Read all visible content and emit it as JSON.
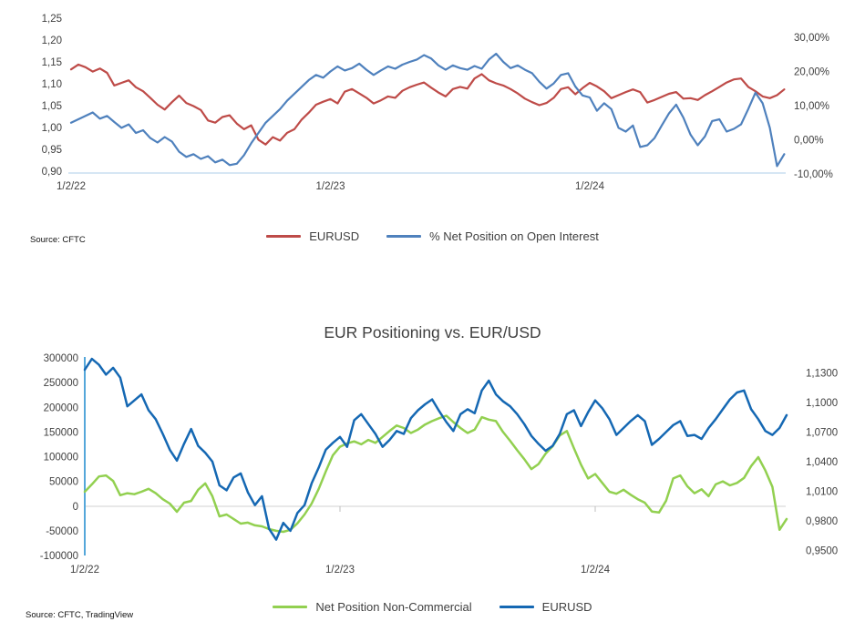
{
  "chart_data": [
    {
      "type": "line",
      "title": "",
      "source": "Source: CFTC",
      "x_tick_labels": [
        "1/2/22",
        "1/2/23",
        "1/2/24"
      ],
      "x_tick_years": [
        0,
        1,
        2
      ],
      "x_span_years": 2.75,
      "axes": {
        "left": {
          "min": 0.9,
          "max": 1.25,
          "labels": [
            "1,25",
            "1,20",
            "1,15",
            "1,10",
            "1,05",
            "1,00",
            "0,95",
            "0,90"
          ],
          "label_values": [
            1.25,
            1.2,
            1.15,
            1.1,
            1.05,
            1.0,
            0.95,
            0.9
          ]
        },
        "right": {
          "min": -10,
          "max": 30,
          "labels": [
            "30,00%",
            "20,00%",
            "10,00%",
            "0,00%",
            "-10,00%"
          ],
          "label_values": [
            30,
            20,
            10,
            0,
            -10
          ]
        }
      },
      "legend_position": "bottom",
      "series": [
        {
          "name": "EURUSD",
          "color": "#BE4B48",
          "axis": "left",
          "values": [
            1.133,
            1.144,
            1.138,
            1.128,
            1.135,
            1.125,
            1.096,
            1.102,
            1.108,
            1.092,
            1.083,
            1.068,
            1.052,
            1.041,
            1.058,
            1.073,
            1.056,
            1.049,
            1.04,
            1.016,
            1.011,
            1.024,
            1.028,
            1.009,
            0.996,
            1.005,
            0.972,
            0.961,
            0.978,
            0.97,
            0.988,
            0.996,
            1.018,
            1.034,
            1.052,
            1.059,
            1.065,
            1.055,
            1.082,
            1.088,
            1.078,
            1.068,
            1.055,
            1.062,
            1.071,
            1.068,
            1.084,
            1.092,
            1.098,
            1.103,
            1.091,
            1.08,
            1.071,
            1.088,
            1.093,
            1.089,
            1.112,
            1.122,
            1.108,
            1.101,
            1.096,
            1.088,
            1.078,
            1.066,
            1.058,
            1.051,
            1.056,
            1.068,
            1.088,
            1.092,
            1.076,
            1.09,
            1.102,
            1.094,
            1.083,
            1.067,
            1.074,
            1.081,
            1.087,
            1.081,
            1.057,
            1.063,
            1.07,
            1.077,
            1.081,
            1.066,
            1.067,
            1.063,
            1.074,
            1.083,
            1.093,
            1.103,
            1.11,
            1.112,
            1.093,
            1.083,
            1.071,
            1.067,
            1.074,
            1.087
          ]
        },
        {
          "name": "% Net Position on Open Interest",
          "color": "#4F81BD",
          "axis": "right",
          "values": [
            5.0,
            6.0,
            7.0,
            8.0,
            6.2,
            7.0,
            5.2,
            3.5,
            4.5,
            2.0,
            2.8,
            0.5,
            -0.8,
            0.8,
            -0.5,
            -3.5,
            -5.0,
            -4.2,
            -5.6,
            -4.8,
            -6.6,
            -5.8,
            -7.4,
            -7.0,
            -4.5,
            -1.0,
            2.0,
            5.0,
            7.0,
            9.0,
            11.5,
            13.5,
            15.5,
            17.5,
            19.0,
            18.2,
            20.0,
            21.5,
            20.3,
            21.0,
            22.3,
            20.5,
            19.0,
            20.3,
            21.5,
            20.8,
            22.0,
            22.8,
            23.5,
            24.8,
            23.8,
            21.8,
            20.5,
            21.8,
            21.0,
            20.5,
            21.6,
            20.8,
            23.5,
            25.2,
            22.8,
            21.0,
            21.8,
            20.5,
            19.5,
            17.0,
            15.0,
            16.5,
            19.0,
            19.5,
            15.6,
            13.0,
            12.4,
            8.5,
            10.7,
            9.0,
            3.5,
            2.4,
            4.2,
            -2.1,
            -1.6,
            0.5,
            4.2,
            7.7,
            10.3,
            6.5,
            1.5,
            -1.6,
            1.0,
            5.5,
            6.0,
            2.4,
            3.2,
            4.5,
            9.0,
            13.8,
            10.7,
            3.5,
            -7.7,
            -4.2
          ]
        }
      ]
    },
    {
      "type": "line",
      "title": "EUR Positioning vs. EUR/USD",
      "source": "Source: CFTC, TradingView",
      "x_tick_labels": [
        "1/2/22",
        "1/2/23",
        "1/2/24"
      ],
      "x_tick_years": [
        0,
        1,
        2
      ],
      "x_span_years": 2.75,
      "axes": {
        "left": {
          "min": -100000,
          "max": 300000,
          "labels": [
            "300000",
            "250000",
            "200000",
            "150000",
            "100000",
            "50000",
            "0",
            "-50000",
            "-100000"
          ],
          "label_values": [
            300000,
            250000,
            200000,
            150000,
            100000,
            50000,
            0,
            -50000,
            -100000
          ]
        },
        "right": {
          "min": 0.945,
          "max": 1.145,
          "labels": [
            "1,1300",
            "1,1000",
            "1,0700",
            "1,0400",
            "1,0100",
            "0,9800",
            "0,9500"
          ],
          "label_values": [
            1.13,
            1.1,
            1.07,
            1.04,
            1.01,
            0.98,
            0.95
          ]
        }
      },
      "legend_position": "bottom",
      "series": [
        {
          "name": "Net Position Non-Commercial",
          "color": "#92D050",
          "axis": "left",
          "values": [
            29000,
            44000,
            60000,
            62000,
            51000,
            22000,
            26000,
            24000,
            29000,
            35000,
            26000,
            14000,
            5000,
            -11500,
            7000,
            10500,
            33000,
            46000,
            20000,
            -21000,
            -17000,
            -26000,
            -35500,
            -33500,
            -39000,
            -41000,
            -46500,
            -50000,
            -52000,
            -48000,
            -35000,
            -17000,
            5000,
            35000,
            70000,
            103000,
            120000,
            127000,
            131000,
            125000,
            134000,
            128000,
            140000,
            152000,
            163000,
            158000,
            148000,
            155000,
            165000,
            172000,
            178000,
            183000,
            170000,
            158000,
            148000,
            155000,
            180000,
            175000,
            172000,
            150000,
            132000,
            113000,
            95000,
            75000,
            85000,
            106000,
            121000,
            143000,
            152000,
            117000,
            84000,
            56000,
            65000,
            47000,
            29000,
            25000,
            33000,
            23000,
            14000,
            7000,
            -11000,
            -13000,
            11000,
            56000,
            62000,
            40000,
            26000,
            34000,
            20000,
            44000,
            50000,
            42000,
            47000,
            57000,
            81000,
            99000,
            72000,
            39000,
            -48000,
            -26000
          ]
        },
        {
          "name": "EURUSD",
          "color": "#1568B3",
          "axis": "right",
          "values": [
            1.133,
            1.144,
            1.138,
            1.128,
            1.135,
            1.125,
            1.096,
            1.102,
            1.108,
            1.092,
            1.083,
            1.068,
            1.052,
            1.041,
            1.058,
            1.073,
            1.056,
            1.049,
            1.04,
            1.016,
            1.011,
            1.024,
            1.028,
            1.009,
            0.996,
            1.005,
            0.972,
            0.961,
            0.978,
            0.97,
            0.988,
            0.996,
            1.018,
            1.034,
            1.052,
            1.059,
            1.065,
            1.055,
            1.082,
            1.088,
            1.078,
            1.068,
            1.055,
            1.062,
            1.071,
            1.068,
            1.084,
            1.092,
            1.098,
            1.103,
            1.091,
            1.08,
            1.071,
            1.088,
            1.093,
            1.089,
            1.112,
            1.122,
            1.108,
            1.101,
            1.096,
            1.088,
            1.078,
            1.066,
            1.058,
            1.051,
            1.056,
            1.068,
            1.088,
            1.092,
            1.076,
            1.09,
            1.102,
            1.094,
            1.083,
            1.067,
            1.074,
            1.081,
            1.087,
            1.081,
            1.057,
            1.063,
            1.07,
            1.077,
            1.081,
            1.066,
            1.067,
            1.063,
            1.074,
            1.083,
            1.093,
            1.103,
            1.11,
            1.112,
            1.093,
            1.083,
            1.071,
            1.067,
            1.074,
            1.087
          ]
        }
      ]
    }
  ]
}
